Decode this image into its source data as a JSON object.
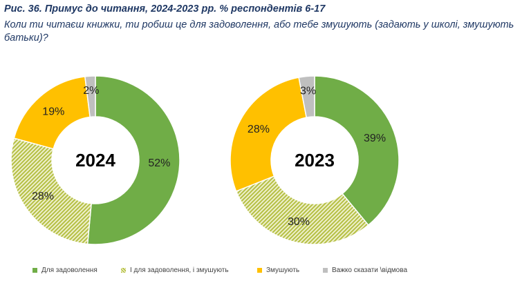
{
  "figure": {
    "title": "Рис. 36. Примус до читання, 2024-2023 рр. % респондентів 6-17",
    "subtitle": "Коли ти читаєш книжки, ти робиш це для задоволення, або тебе змушують (задають у школі, змушують батьки)?"
  },
  "chart_data": [
    {
      "type": "pie",
      "variant": "donut",
      "center_label": "2024",
      "categories": [
        "Для задоволення",
        "І для задоволення, і змушують",
        "Змушують",
        "Важко сказати \\відмова"
      ],
      "values": [
        52,
        28,
        19,
        2
      ],
      "labels": [
        "52%",
        "28%",
        "19%",
        "2%"
      ]
    },
    {
      "type": "pie",
      "variant": "donut",
      "center_label": "2023",
      "categories": [
        "Для задоволення",
        "І для задоволення, і змушують",
        "Змушують",
        "Важко сказати \\відмова"
      ],
      "values": [
        39,
        30,
        28,
        3
      ],
      "labels": [
        "39%",
        "30%",
        "28%",
        "3%"
      ]
    }
  ],
  "legend": {
    "placement": "bottom",
    "items": [
      {
        "label": "Для задоволення",
        "color": "#70ad47",
        "style": "solid"
      },
      {
        "label": "І для задоволення, і змушують",
        "color": "#b5bf43",
        "style": "hatched"
      },
      {
        "label": "Змушують",
        "color": "#ffc000",
        "style": "solid"
      },
      {
        "label": "Важко сказати \\відмова",
        "color": "#bfbfbf",
        "style": "solid"
      }
    ]
  }
}
